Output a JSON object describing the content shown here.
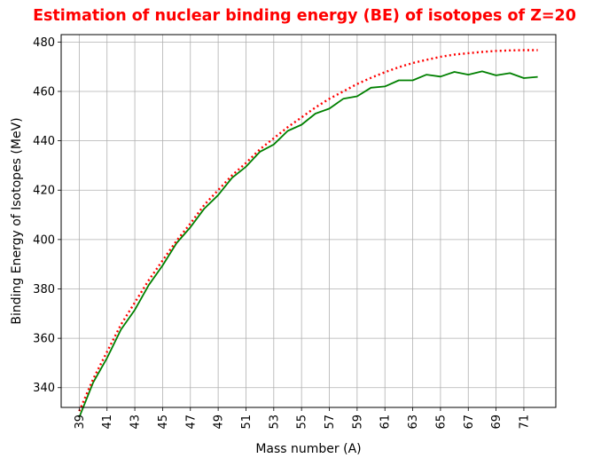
{
  "chart_data": {
    "type": "line",
    "title": "Estimation of nuclear binding energy (BE) of isotopes of Z=20",
    "title_color": "#ff0000",
    "xlabel": "Mass number (A)",
    "ylabel": "Binding Energy of Isotopes (MeV)",
    "xlim": [
      37.7,
      73.3
    ],
    "ylim": [
      332,
      483
    ],
    "x_ticks": [
      39,
      41,
      43,
      45,
      47,
      49,
      51,
      53,
      55,
      57,
      59,
      61,
      63,
      65,
      67,
      69,
      71
    ],
    "x_tick_labels": [
      "39",
      "41",
      "43",
      "45",
      "47",
      "49",
      "51",
      "53",
      "55",
      "57",
      "59",
      "61",
      "63",
      "65",
      "67",
      "69",
      "71"
    ],
    "x_tick_rotation": 90,
    "y_ticks": [
      340,
      360,
      380,
      400,
      420,
      440,
      460,
      480
    ],
    "y_tick_labels": [
      "340",
      "360",
      "380",
      "400",
      "420",
      "440",
      "460",
      "480"
    ],
    "grid": true,
    "x": [
      39,
      40,
      41,
      42,
      43,
      44,
      45,
      46,
      47,
      48,
      49,
      50,
      51,
      52,
      53,
      54,
      55,
      56,
      57,
      58,
      59,
      60,
      61,
      62,
      63,
      64,
      65,
      66,
      67,
      68,
      69,
      70,
      71,
      72
    ],
    "series": [
      {
        "style": "solid",
        "color": "#008000",
        "values": [
          328.0,
          342.1,
          352.0,
          363.5,
          371.5,
          381.5,
          389.5,
          398.5,
          405.0,
          412.5,
          418.0,
          425.0,
          429.5,
          435.5,
          438.5,
          444.0,
          446.5,
          451.0,
          453.0,
          457.0,
          458.0,
          461.5,
          462.0,
          464.5,
          464.5,
          466.8,
          466.0,
          467.9,
          466.8,
          468.1,
          466.5,
          467.4,
          465.4,
          465.9
        ]
      },
      {
        "style": "dotted",
        "color": "#ff0000",
        "values": [
          330.5,
          343.5,
          354.5,
          365.5,
          374.5,
          383.5,
          391.5,
          399.5,
          406.5,
          414.0,
          420.0,
          426.0,
          431.0,
          436.5,
          441.0,
          445.5,
          449.5,
          453.5,
          457.0,
          460.0,
          463.0,
          465.5,
          467.8,
          469.8,
          471.5,
          472.8,
          474.0,
          474.9,
          475.5,
          476.0,
          476.4,
          476.6,
          476.7,
          476.7
        ]
      }
    ]
  }
}
